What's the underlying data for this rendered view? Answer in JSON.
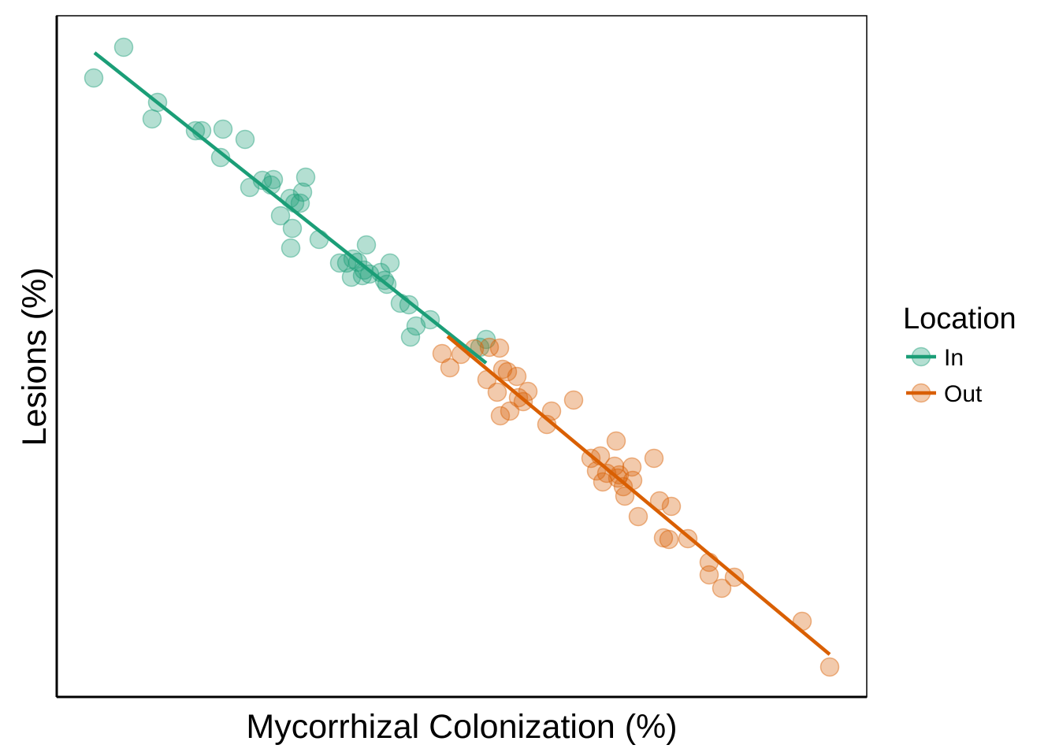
{
  "chart_data": {
    "type": "scatter",
    "title": "",
    "xlabel": "Mycorrhizal Colonization (%)",
    "ylabel": "Lesions (%)",
    "x_tick_labels": [],
    "y_tick_labels": [],
    "xlim": [
      72,
      1100
    ],
    "ylim": [
      885,
      20
    ],
    "grid": false,
    "legend": {
      "title": "Location",
      "placement": "right"
    },
    "series": [
      {
        "name": "In",
        "color": "#1b9e77",
        "fit": {
          "x": [
            120,
            617
          ],
          "y": [
            67,
            461
          ]
        },
        "points": [
          [
            119,
            99
          ],
          [
            157,
            60
          ],
          [
            193,
            151
          ],
          [
            200,
            130
          ],
          [
            248,
            166
          ],
          [
            256,
            166
          ],
          [
            283,
            164
          ],
          [
            311,
            177
          ],
          [
            280,
            200
          ],
          [
            317,
            238
          ],
          [
            333,
            229
          ],
          [
            344,
            235
          ],
          [
            347,
            228
          ],
          [
            388,
            225
          ],
          [
            384,
            244
          ],
          [
            368,
            252
          ],
          [
            356,
            274
          ],
          [
            374,
            258
          ],
          [
            381,
            258
          ],
          [
            371,
            290
          ],
          [
            369,
            315
          ],
          [
            405,
            304
          ],
          [
            465,
            311
          ],
          [
            431,
            334
          ],
          [
            440,
            334
          ],
          [
            448,
            329
          ],
          [
            454,
            333
          ],
          [
            462,
            343
          ],
          [
            446,
            352
          ],
          [
            460,
            350
          ],
          [
            469,
            348
          ],
          [
            483,
            346
          ],
          [
            495,
            334
          ],
          [
            488,
            356
          ],
          [
            491,
            361
          ],
          [
            508,
            385
          ],
          [
            519,
            387
          ],
          [
            528,
            414
          ],
          [
            521,
            428
          ],
          [
            546,
            406
          ],
          [
            617,
            431
          ],
          [
            609,
            441
          ]
        ]
      },
      {
        "name": "Out",
        "color": "#d95f02",
        "fit": {
          "x": [
            568,
            1053
          ],
          "y": [
            427,
            831
          ]
        },
        "points": [
          [
            561,
            449
          ],
          [
            571,
            467
          ],
          [
            585,
            450
          ],
          [
            602,
            443
          ],
          [
            621,
            441
          ],
          [
            634,
            442
          ],
          [
            644,
            472
          ],
          [
            638,
            469
          ],
          [
            618,
            482
          ],
          [
            631,
            498
          ],
          [
            656,
            478
          ],
          [
            670,
            497
          ],
          [
            658,
            505
          ],
          [
            664,
            510
          ],
          [
            647,
            522
          ],
          [
            635,
            528
          ],
          [
            700,
            522
          ],
          [
            694,
            539
          ],
          [
            728,
            508
          ],
          [
            782,
            560
          ],
          [
            830,
            582
          ],
          [
            750,
            582
          ],
          [
            762,
            579
          ],
          [
            757,
            598
          ],
          [
            770,
            601
          ],
          [
            780,
            592
          ],
          [
            786,
            603
          ],
          [
            802,
            593
          ],
          [
            784,
            607
          ],
          [
            765,
            612
          ],
          [
            803,
            610
          ],
          [
            791,
            618
          ],
          [
            793,
            630
          ],
          [
            810,
            656
          ],
          [
            837,
            636
          ],
          [
            852,
            643
          ],
          [
            842,
            683
          ],
          [
            849,
            685
          ],
          [
            873,
            684
          ],
          [
            900,
            714
          ],
          [
            900,
            730
          ],
          [
            932,
            733
          ],
          [
            916,
            747
          ],
          [
            1018,
            789
          ],
          [
            1053,
            847
          ]
        ]
      }
    ]
  }
}
